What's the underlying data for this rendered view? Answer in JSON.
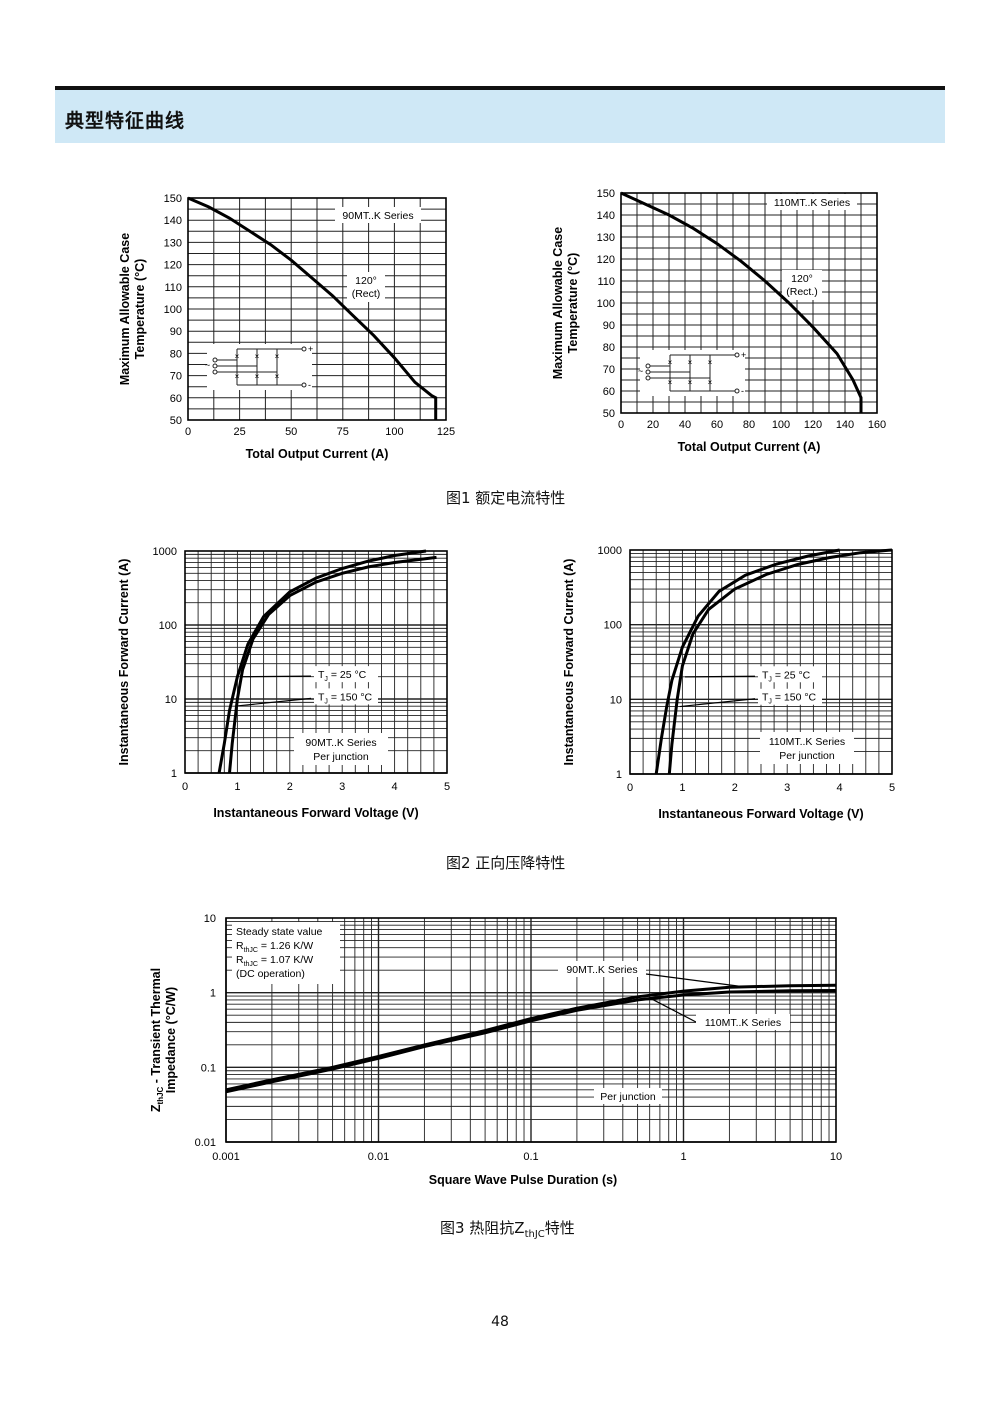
{
  "header": {
    "title": "典型特征曲线"
  },
  "captions": {
    "fig1": "图1 额定电流特性",
    "fig2": "图2 正向压降特性",
    "fig3_prefix": "图3 热阻抗Z",
    "fig3_sub": "thJC",
    "fig3_suffix": "特性"
  },
  "page_number": "48",
  "chart_data": [
    {
      "id": "fig1a",
      "type": "line",
      "xlabel": "Total Output Current (A)",
      "ylabel_lines": [
        "Maximum Allowable Case",
        "Temperature (°C)"
      ],
      "xlim": [
        0,
        125
      ],
      "ylim": [
        50,
        150
      ],
      "xticks": [
        0,
        25,
        50,
        75,
        100,
        125
      ],
      "yticks": [
        50,
        60,
        70,
        80,
        90,
        100,
        110,
        120,
        130,
        140,
        150
      ],
      "series_label": "90MT..K Series",
      "curve_label": [
        "120°",
        "(Rect)"
      ],
      "series": [
        {
          "x": [
            0,
            10,
            20,
            30,
            40,
            50,
            60,
            70,
            80,
            90,
            100,
            110,
            118,
            120,
            120
          ],
          "y": [
            150,
            146,
            141,
            135,
            129,
            122,
            114,
            106,
            97,
            88,
            78,
            67,
            61,
            60,
            50
          ]
        }
      ]
    },
    {
      "id": "fig1b",
      "type": "line",
      "xlabel": "Total Output Current (A)",
      "ylabel_lines": [
        "Maximum Allowable Case",
        "Temperature (°C)"
      ],
      "xlim": [
        0,
        160
      ],
      "ylim": [
        50,
        150
      ],
      "xticks": [
        0,
        20,
        40,
        60,
        80,
        100,
        120,
        140,
        160
      ],
      "yticks": [
        50,
        60,
        70,
        80,
        90,
        100,
        110,
        120,
        130,
        140,
        150
      ],
      "series_label": "110MT..K Series",
      "curve_label": [
        "120°",
        "(Rect.)"
      ],
      "series": [
        {
          "x": [
            0,
            15,
            30,
            45,
            60,
            75,
            90,
            105,
            120,
            135,
            145,
            150,
            150
          ],
          "y": [
            150,
            145,
            140,
            134,
            127,
            119,
            110,
            100,
            89,
            77,
            65,
            57,
            50
          ]
        }
      ]
    },
    {
      "id": "fig2a",
      "type": "line",
      "yscale": "log",
      "xlabel": "Instantaneous Forward Voltage (V)",
      "ylabel_lines": [
        "Instantaneous Forward Current (A)"
      ],
      "xlim": [
        0,
        5
      ],
      "ylim": [
        1,
        1000
      ],
      "xticks": [
        0,
        1,
        2,
        3,
        4,
        5
      ],
      "yticks": [
        1,
        10,
        100,
        1000
      ],
      "series_label": [
        "90MT..K Series",
        "Per junction"
      ],
      "series": [
        {
          "name": "T = 25 °C",
          "sub": "J",
          "tail": " = 25 °C",
          "x": [
            0.65,
            0.75,
            0.85,
            1.0,
            1.2,
            1.5,
            2.0,
            2.5,
            3.0,
            3.5,
            4.0,
            4.6
          ],
          "y": [
            1,
            2.5,
            7,
            20,
            55,
            130,
            280,
            430,
            580,
            730,
            870,
            1000
          ]
        },
        {
          "name": "T = 150 °C",
          "sub": "J",
          "tail": " = 150 °C",
          "x": [
            0.85,
            0.9,
            1.0,
            1.1,
            1.3,
            1.6,
            2.0,
            2.5,
            3.0,
            3.5,
            4.0,
            4.8
          ],
          "y": [
            1,
            2.5,
            10,
            25,
            65,
            140,
            250,
            380,
            500,
            610,
            700,
            820
          ]
        }
      ]
    },
    {
      "id": "fig2b",
      "type": "line",
      "yscale": "log",
      "xlabel": "Instantaneous Forward Voltage (V)",
      "ylabel_lines": [
        "Instantaneous Forward Current (A)"
      ],
      "xlim": [
        0,
        5
      ],
      "ylim": [
        1,
        1000
      ],
      "xticks": [
        0,
        1,
        2,
        3,
        4,
        5
      ],
      "yticks": [
        1,
        10,
        100,
        1000
      ],
      "series_label": [
        "110MT..K Series",
        "Per junction"
      ],
      "series": [
        {
          "name": "T = 25 °C",
          "sub": "J",
          "tail": " = 25 °C",
          "x": [
            0.5,
            0.6,
            0.7,
            0.8,
            1.0,
            1.3,
            1.7,
            2.2,
            2.8,
            3.4,
            4.0
          ],
          "y": [
            1,
            3,
            8,
            18,
            50,
            130,
            280,
            460,
            650,
            830,
            1000
          ]
        },
        {
          "name": "T = 150 °C",
          "sub": "J",
          "tail": " = 150 °C",
          "x": [
            0.75,
            0.8,
            0.9,
            1.0,
            1.2,
            1.5,
            2.0,
            2.6,
            3.2,
            3.8,
            4.4,
            5.0
          ],
          "y": [
            1,
            2.5,
            10,
            28,
            75,
            160,
            300,
            470,
            640,
            790,
            920,
            1000
          ]
        }
      ]
    },
    {
      "id": "fig3",
      "type": "line",
      "xscale": "log",
      "yscale": "log",
      "xlabel": "Square Wave Pulse Duration (s)",
      "ylabel_lines": [
        "Z",
        "thJC",
        " - Transient Thermal",
        "Impedance (°C/W)"
      ],
      "xlim": [
        0.001,
        10
      ],
      "ylim": [
        0.01,
        10
      ],
      "xticks": [
        0.001,
        0.01,
        0.1,
        1,
        10
      ],
      "xtick_labels": [
        "0.001",
        "0.01",
        "0.1",
        "1",
        "10"
      ],
      "yticks": [
        0.01,
        0.1,
        1,
        10
      ],
      "ytick_labels": [
        "0.01",
        "0.1",
        "1",
        "10"
      ],
      "legend_lines": [
        {
          "main": "Steady state value"
        },
        {
          "pre": "R",
          "sub": "thJC",
          "post": " = 1.26 K/W"
        },
        {
          "pre": "R",
          "sub": "thJC",
          "post": " = 1.07 K/W"
        },
        {
          "main": "(DC operation)"
        }
      ],
      "notes": [
        "90MT..K Series",
        "110MT..K Series",
        "Per junction"
      ],
      "series": [
        {
          "name": "90MT..K Series",
          "x": [
            0.001,
            0.002,
            0.005,
            0.01,
            0.02,
            0.05,
            0.1,
            0.2,
            0.5,
            1,
            2,
            5,
            10
          ],
          "y": [
            0.05,
            0.068,
            0.1,
            0.14,
            0.2,
            0.31,
            0.45,
            0.62,
            0.88,
            1.05,
            1.18,
            1.24,
            1.26
          ]
        },
        {
          "name": "110MT..K Series",
          "x": [
            0.001,
            0.002,
            0.005,
            0.01,
            0.02,
            0.05,
            0.1,
            0.2,
            0.5,
            1,
            2,
            5,
            10
          ],
          "y": [
            0.047,
            0.064,
            0.095,
            0.132,
            0.19,
            0.29,
            0.42,
            0.58,
            0.8,
            0.93,
            1.02,
            1.06,
            1.07
          ]
        }
      ]
    }
  ]
}
